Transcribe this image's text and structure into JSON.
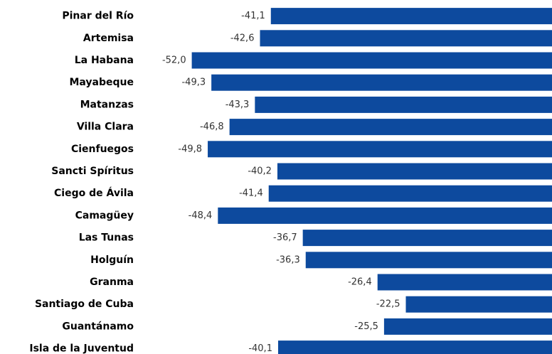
{
  "chart_data": {
    "type": "bar",
    "orientation": "horizontal",
    "categories": [
      "Pinar del Río",
      "Artemisa",
      "La Habana",
      "Mayabeque",
      "Matanzas",
      "Villa Clara",
      "Cienfuegos",
      "Sancti Spíritus",
      "Ciego de Ávila",
      "Camagüey",
      "Las Tunas",
      "Holguín",
      "Granma",
      "Santiago de Cuba",
      "Guantánamo",
      "Isla de la Juventud"
    ],
    "values": [
      -41.1,
      -42.6,
      -52.0,
      -49.3,
      -43.3,
      -46.8,
      -49.8,
      -40.2,
      -41.4,
      -48.4,
      -36.7,
      -36.3,
      -26.4,
      -22.5,
      -25.5,
      -40.1
    ],
    "value_labels": [
      "-41,1",
      "-42,6",
      "-52,0",
      "-49,3",
      "-43,3",
      "-46,8",
      "-49,8",
      "-40,2",
      "-41,4",
      "-48,4",
      "-36,7",
      "-36,3",
      "-26,4",
      "-22,5",
      "-25,5",
      "-40,1"
    ],
    "color": "#0d4a9e",
    "xlim": [
      -55,
      0
    ]
  }
}
